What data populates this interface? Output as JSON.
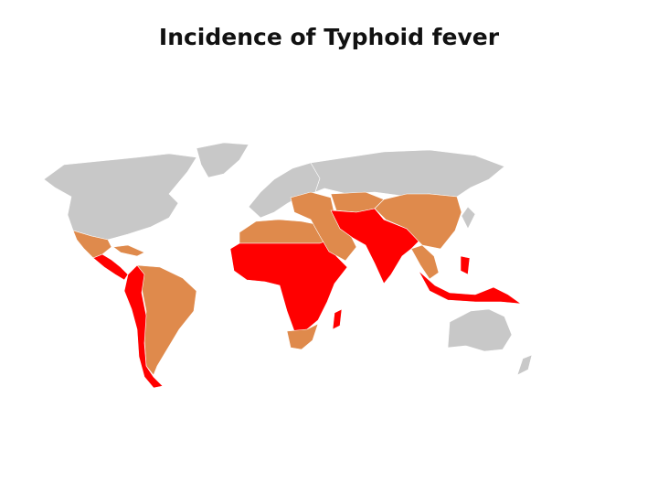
{
  "title": "Incidence of Typhoid fever"
}
